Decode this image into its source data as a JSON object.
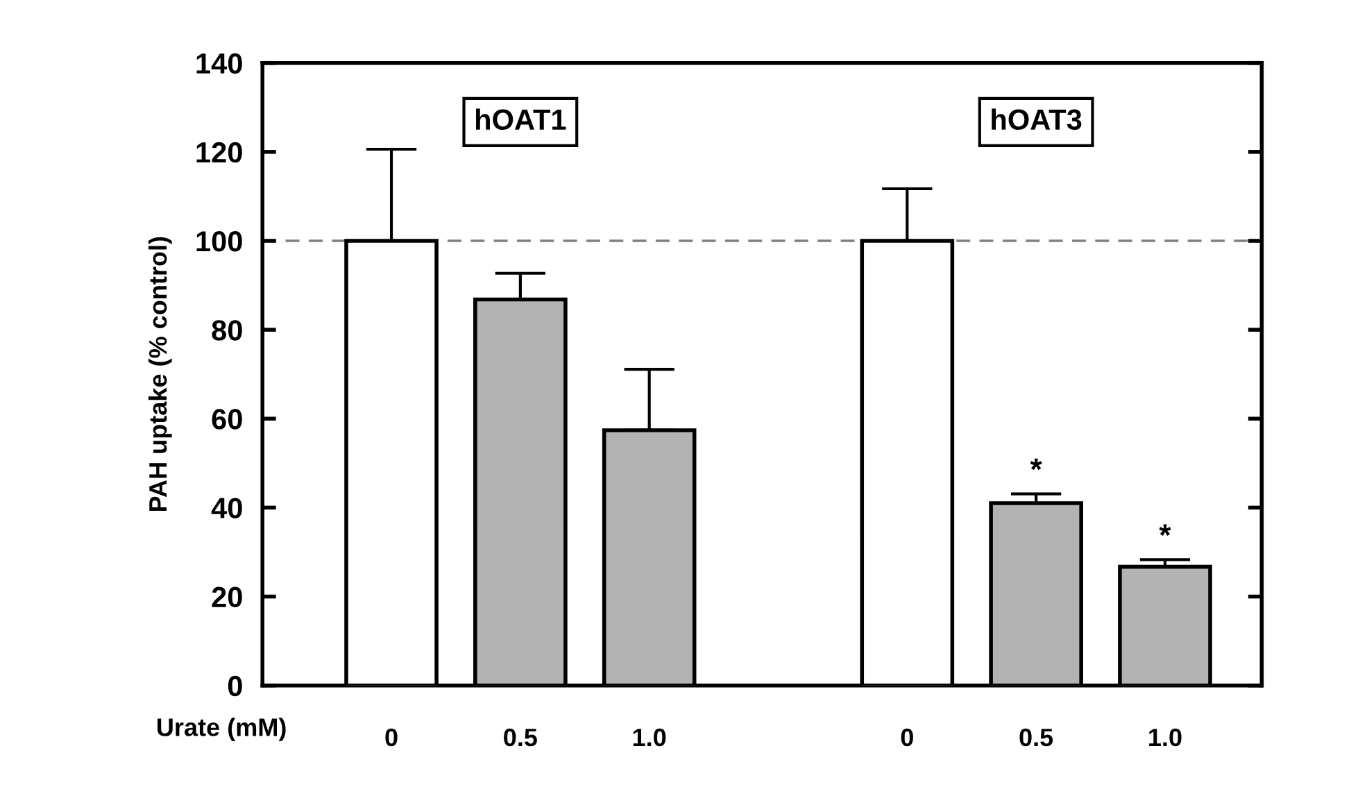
{
  "chart_data": {
    "type": "bar",
    "xlabel": "Urate (mM)",
    "ylabel": "PAH uptake (% control)",
    "categories": [
      "0",
      "0.5",
      "1.0",
      null,
      "0",
      "0.5",
      "1.0"
    ],
    "values": [
      100,
      86.8,
      57.4,
      null,
      100,
      41.0,
      26.7
    ],
    "colors": [
      "#ffffff",
      "#b3b3b3",
      "#b3b3b3",
      null,
      "#ffffff",
      "#b3b3b3",
      "#b3b3b3"
    ],
    "errors": [
      [
        100,
        120.6
      ],
      [
        86.8,
        92.7
      ],
      [
        57.4,
        71.1
      ],
      null,
      [
        100,
        111.7
      ],
      [
        41.0,
        43.1
      ],
      [
        26.7,
        28.3
      ]
    ],
    "ylim": [
      0,
      140
    ],
    "yticks": [
      0,
      20,
      40,
      60,
      80,
      100,
      120,
      140
    ],
    "ref_lines": [
      {
        "axis": "y",
        "value": 100,
        "color": "#808080",
        "line_style": "dashed"
      }
    ],
    "annotations": [
      "hOAT1",
      "hOAT3",
      "*",
      "*"
    ],
    "grid": false
  }
}
